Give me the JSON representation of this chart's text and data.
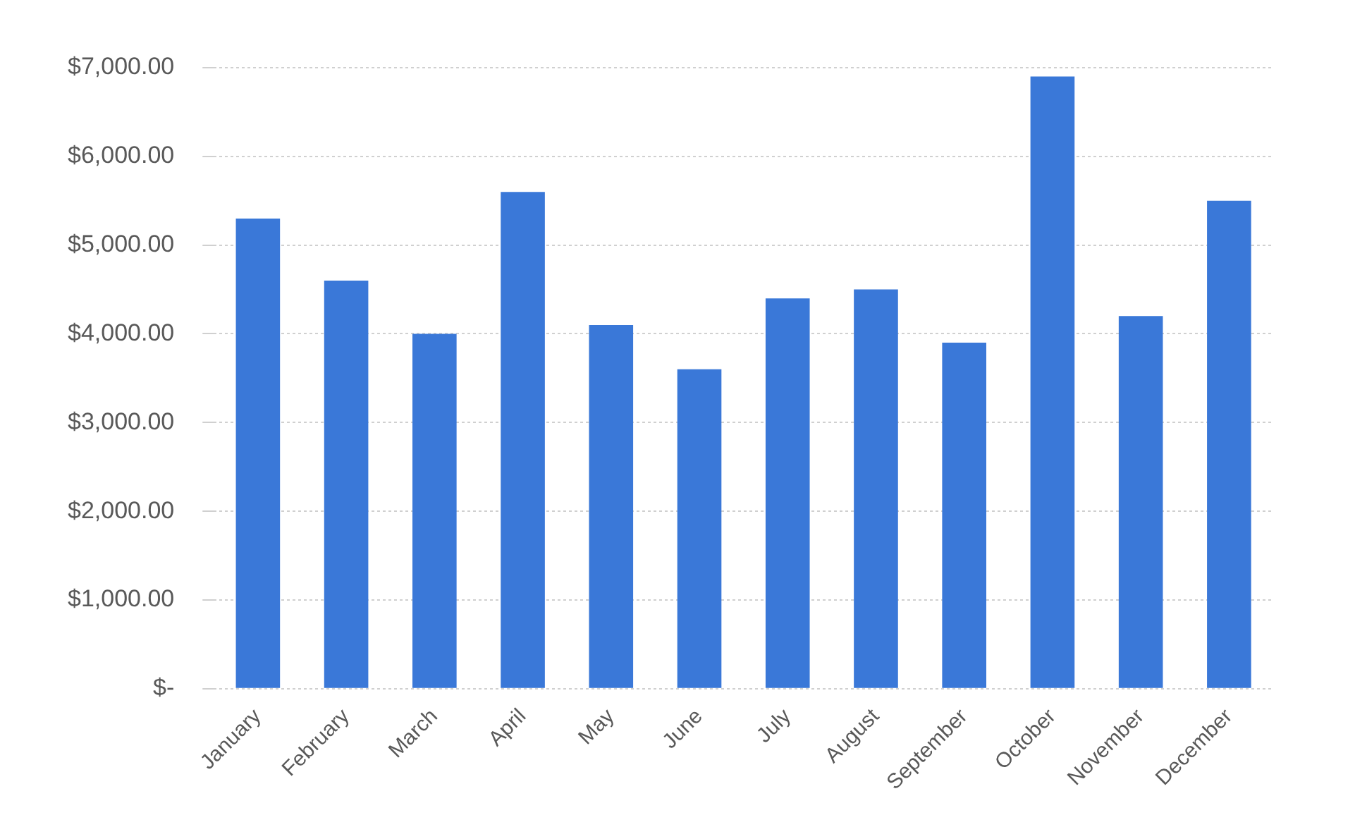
{
  "chart_data": {
    "type": "bar",
    "categories": [
      "January",
      "February",
      "March",
      "April",
      "May",
      "June",
      "July",
      "August",
      "September",
      "October",
      "November",
      "December"
    ],
    "values": [
      5300,
      4600,
      4000,
      5600,
      4100,
      3600,
      4400,
      4500,
      3900,
      6900,
      4200,
      5500
    ],
    "color": "#3a78d8",
    "ylim": [
      0,
      7000
    ],
    "yticks": [
      {
        "value": 0,
        "label": "$-"
      },
      {
        "value": 1000,
        "label": "$1,000.00"
      },
      {
        "value": 2000,
        "label": "$2,000.00"
      },
      {
        "value": 3000,
        "label": "$3,000.00"
      },
      {
        "value": 4000,
        "label": "$4,000.00"
      },
      {
        "value": 5000,
        "label": "$5,000.00"
      },
      {
        "value": 6000,
        "label": "$6,000.00"
      },
      {
        "value": 7000,
        "label": "$7,000.00"
      }
    ],
    "grid": "y"
  }
}
